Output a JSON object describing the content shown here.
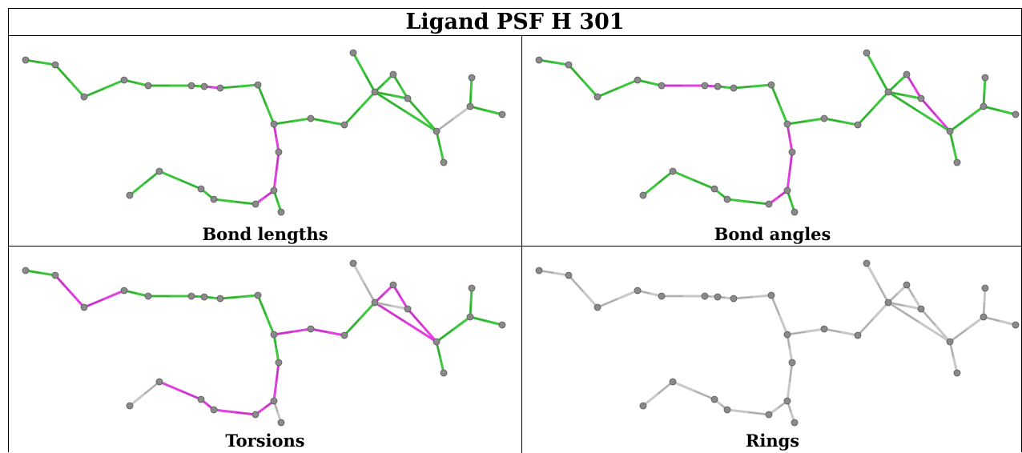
{
  "title": "Ligand PSF H 301",
  "colors": {
    "good": "#3ec63e",
    "outlier": "#e040e0",
    "neutral": "#c8c8c8",
    "atom": "#8a8a8a"
  },
  "panels": [
    {
      "caption": "Bond lengths",
      "bond_colors": [
        "good",
        "good",
        "good",
        "good",
        "good",
        "good",
        "outlier",
        "good",
        "good",
        "good",
        "good",
        "good",
        "good",
        "good",
        "good",
        "good",
        "good",
        "neutral",
        "good",
        "good",
        "good",
        "outlier",
        "outlier",
        "outlier",
        "good",
        "good",
        "good",
        "good",
        "good",
        "good"
      ]
    },
    {
      "caption": "Bond angles",
      "bond_colors": [
        "good",
        "good",
        "good",
        "good",
        "outlier",
        "outlier",
        "good",
        "good",
        "good",
        "good",
        "good",
        "good",
        "good",
        "good",
        "outlier",
        "outlier",
        "good",
        "good",
        "good",
        "good",
        "good",
        "outlier",
        "outlier",
        "outlier",
        "good",
        "good",
        "good",
        "good",
        "good",
        "good"
      ]
    },
    {
      "caption": "Torsions",
      "bond_colors": [
        "good",
        "outlier",
        "outlier",
        "good",
        "good",
        "good",
        "good",
        "good",
        "good",
        "outlier",
        "outlier",
        "good",
        "neutral",
        "outlier",
        "outlier",
        "outlier",
        "outlier",
        "good",
        "good",
        "good",
        "good",
        "good",
        "outlier",
        "outlier",
        "outlier",
        "outlier",
        "outlier",
        "neutral",
        "neutral",
        "neutral"
      ]
    },
    {
      "caption": "Rings",
      "bond_colors": [
        "neutral",
        "neutral",
        "neutral",
        "neutral",
        "neutral",
        "neutral",
        "neutral",
        "neutral",
        "neutral",
        "neutral",
        "neutral",
        "neutral",
        "neutral",
        "neutral",
        "neutral",
        "neutral",
        "neutral",
        "neutral",
        "neutral",
        "neutral",
        "neutral",
        "neutral",
        "neutral",
        "neutral",
        "neutral",
        "neutral",
        "neutral",
        "neutral",
        "neutral",
        "neutral"
      ]
    }
  ]
}
